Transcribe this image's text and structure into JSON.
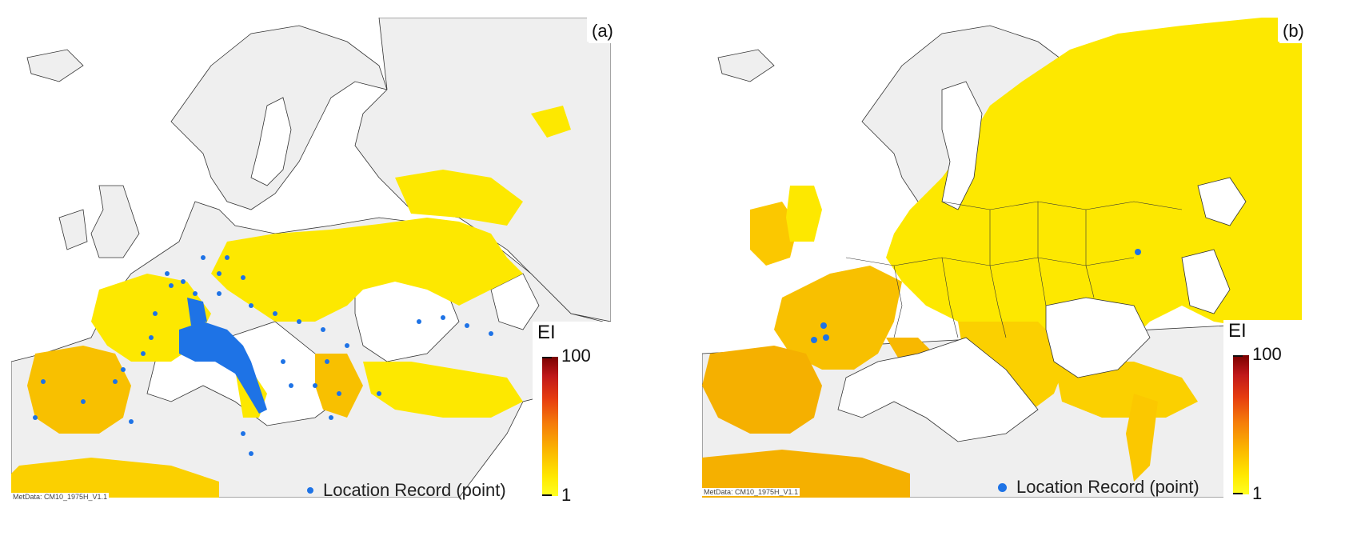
{
  "panels": [
    {
      "id": "a",
      "label": "(a)",
      "legend_label": "Location Record (point)",
      "metadata": "MetData: CM10_1975H_V1.1"
    },
    {
      "id": "b",
      "label": "(b)",
      "legend_label": "Location Record (point)",
      "metadata": "MetData: CM10_1975H_V1.1"
    }
  ],
  "scale": {
    "title": "EI",
    "max_label": "100",
    "min_label": "1"
  },
  "colors": {
    "land_unsuitable": "#efefef",
    "ocean": "#ffffff",
    "suitability_low": "#ffee00",
    "suitability_mid": "#f8b800",
    "suitability_high": "#c0181a",
    "record_point": "#1e73e6",
    "border": "#333333"
  }
}
